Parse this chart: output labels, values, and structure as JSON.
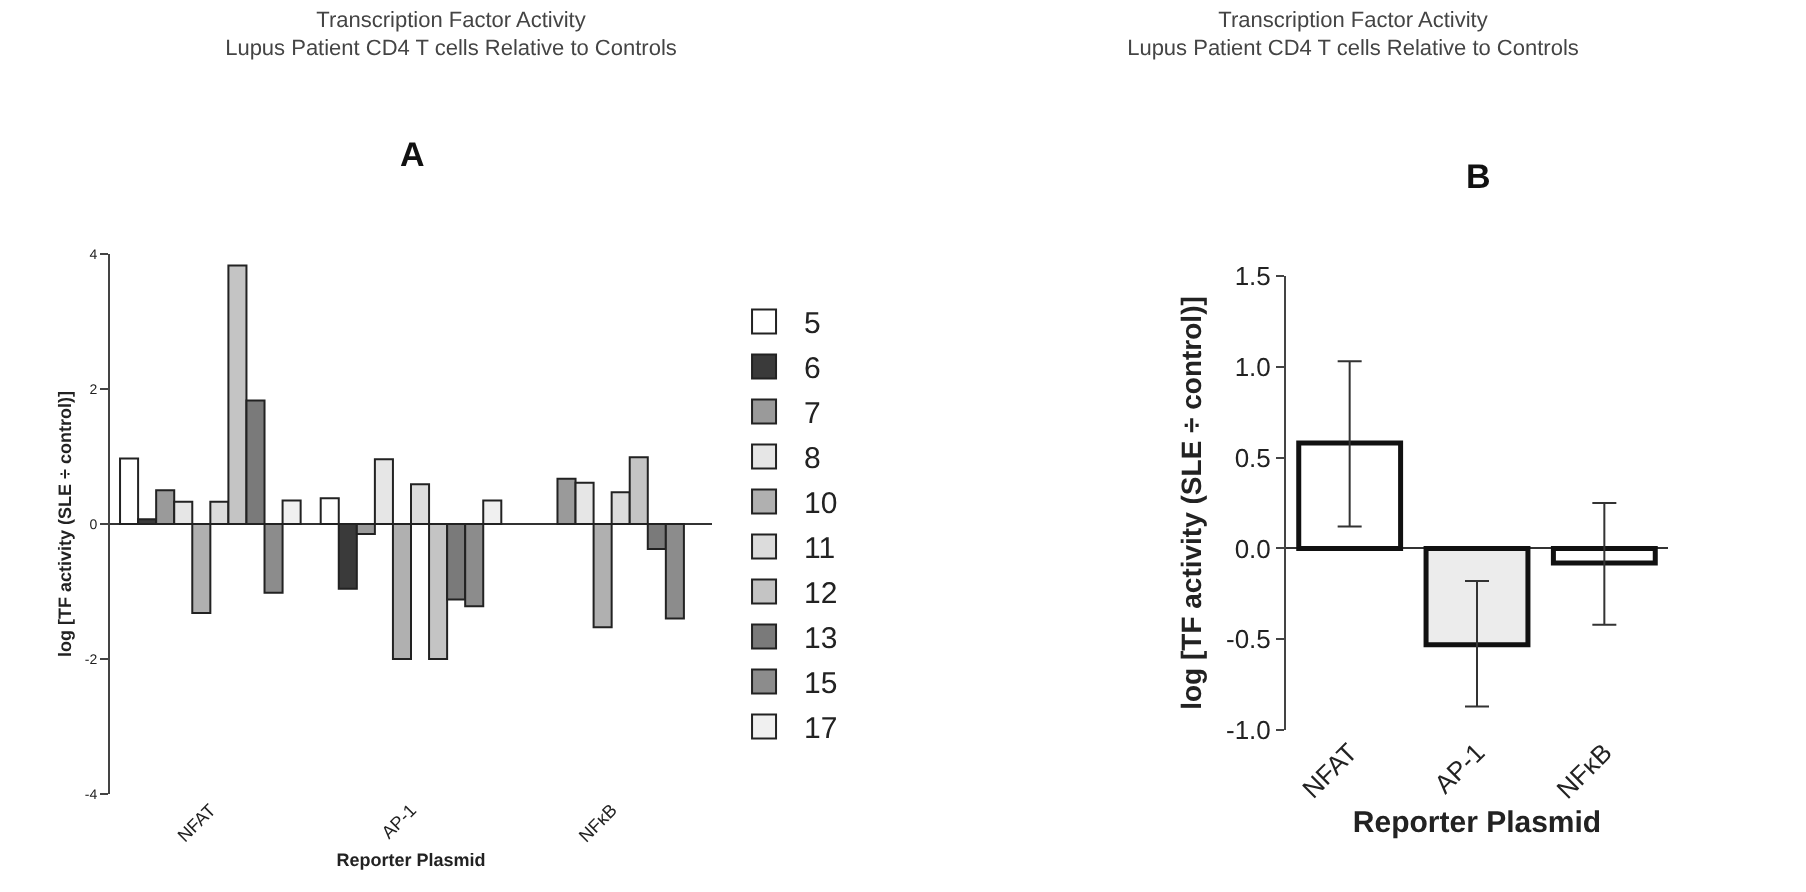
{
  "chart_data": [
    {
      "type": "bar",
      "title": "Transcription Factor Activity",
      "subtitle": "Lupus Patient CD4 T cells Relative to Controls",
      "annotations": [
        "A"
      ],
      "xlabel": "Reporter Plasmid",
      "ylabel": "log [TF activity (SLE ÷ control)]",
      "categories": [
        "NFAT",
        "AP-1",
        "NFκB"
      ],
      "series": [
        {
          "name": "5",
          "color": "#ffffff",
          "values": [
            0.97,
            0.38,
            null
          ]
        },
        {
          "name": "6",
          "color": "#3a3a3a",
          "values": [
            0.07,
            -0.96,
            null
          ]
        },
        {
          "name": "7",
          "color": "#9a9a9a",
          "values": [
            0.5,
            -0.15,
            0.67
          ]
        },
        {
          "name": "8",
          "color": "#e6e6e6",
          "values": [
            0.33,
            0.96,
            0.61
          ]
        },
        {
          "name": "10",
          "color": "#b0b0b0",
          "values": [
            -1.32,
            -2.0,
            -1.53
          ]
        },
        {
          "name": "11",
          "color": "#dcdcdc",
          "values": [
            0.33,
            0.59,
            0.47
          ]
        },
        {
          "name": "12",
          "color": "#c4c4c4",
          "values": [
            3.83,
            -2.0,
            0.99
          ]
        },
        {
          "name": "13",
          "color": "#7a7a7a",
          "values": [
            1.83,
            -1.12,
            -0.37
          ]
        },
        {
          "name": "15",
          "color": "#8c8c8c",
          "values": [
            -1.02,
            -1.22,
            -1.4
          ]
        },
        {
          "name": "17",
          "color": "#f0f0f0",
          "values": [
            0.35,
            0.35,
            null
          ]
        }
      ],
      "ylim": [
        -4,
        4
      ],
      "yticks": [
        -4,
        -2,
        0,
        2,
        4
      ],
      "legend": "right"
    },
    {
      "type": "bar",
      "title": "Transcription Factor Activity",
      "subtitle": "Lupus Patient CD4 T cells Relative to Controls",
      "annotations": [
        "B"
      ],
      "xlabel": "Reporter Plasmid",
      "ylabel": "log [TF activity (SLE ÷ control)]",
      "categories": [
        "NFAT",
        "AP-1",
        "NFκB"
      ],
      "values": [
        0.58,
        -0.53,
        -0.08
      ],
      "colors": [
        "#ffffff",
        "#ececec",
        "#ffffff"
      ],
      "errors": [
        [
          0.12,
          1.03
        ],
        [
          -0.87,
          -0.18
        ],
        [
          -0.42,
          0.25
        ]
      ],
      "ylim": [
        -1.0,
        1.5
      ],
      "yticks": [
        {
          "value": -1.0,
          "label": "-1.0"
        },
        {
          "value": -0.5,
          "label": "-0.5"
        },
        {
          "value": 0,
          "label": "0.0"
        },
        {
          "value": 0.5,
          "label": "0.5"
        },
        {
          "value": 1.0,
          "label": "1.0"
        },
        {
          "value": 1.5,
          "label": "1.5"
        }
      ],
      "legend": false
    }
  ]
}
